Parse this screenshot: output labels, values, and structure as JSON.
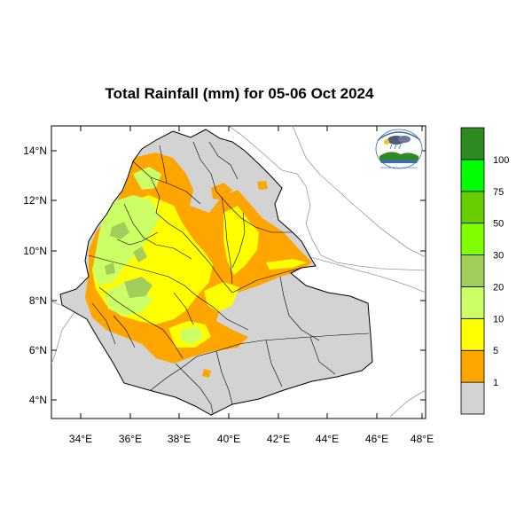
{
  "title": "Total Rainfall (mm) for 05-06 Oct 2024",
  "y_ticks": [
    "14°N",
    "12°N",
    "10°N",
    "8°N",
    "6°N",
    "4°N"
  ],
  "x_ticks": [
    "34°E",
    "36°E",
    "38°E",
    "40°E",
    "42°E",
    "44°E",
    "46°E",
    "48°E"
  ],
  "legend": {
    "labels": [
      "1",
      "5",
      "10",
      "20",
      "30",
      "50",
      "75",
      "100"
    ],
    "colors": [
      "#d3d3d3",
      "#ffa500",
      "#ffff00",
      "#ccff66",
      "#a2cd5a",
      "#7fff00",
      "#66cd00",
      "#00ff00",
      "#2e8b22"
    ]
  },
  "logo": {
    "text": "Ethiopian Meteorology Institute",
    "icon": "meteorology-institute-logo"
  },
  "palette": {
    "land": "#d3d3d3",
    "border": "#000000",
    "neighbor_border": "#999999"
  }
}
